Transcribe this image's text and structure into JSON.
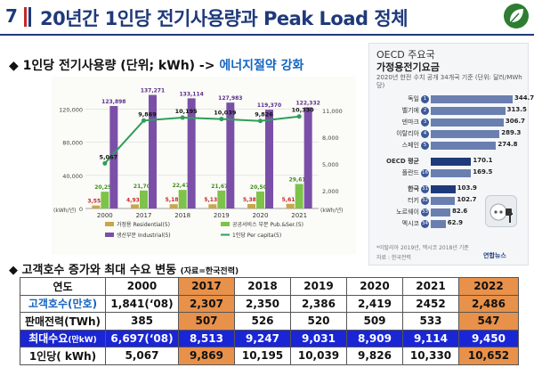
{
  "header": {
    "slide_number": "7",
    "title": "20년간 1인당 전기사용량과 Peak Load 정체",
    "colors": {
      "navy": "#1f3a7a",
      "red": "#c62828",
      "leaf": "#2e7d32"
    }
  },
  "section1": {
    "bullet": "◆",
    "label": "1인당 전기사용량 (단위; kWh) ->",
    "accent": "에너지절약 강화"
  },
  "chart_data": {
    "type": "bar",
    "categories": [
      "2000",
      "2017",
      "2018",
      "2019",
      "2020",
      "2021"
    ],
    "left_axis_ticks": [
      "120,000",
      "80,000",
      "40,000",
      "0"
    ],
    "left_axis_unit": "(kWh/년)",
    "right_axis_ticks": [
      "11,000",
      "8,000",
      "5,000",
      "2,000"
    ],
    "right_axis_unit": "(kWh/년)",
    "ylim_left": [
      0,
      140000
    ],
    "ylim_right": [
      0,
      13000
    ],
    "series": [
      {
        "name": "가정용 Residential(5)",
        "color": "#c9a64b",
        "values": [
          3552,
          4935,
          5189,
          5135,
          5382,
          5616
        ]
      },
      {
        "name": "공공서비스 부문 Pub.&Ser.(5)",
        "color": "#7dc34a",
        "values": [
          20259,
          21704,
          22471,
          21672,
          20500,
          29616
        ]
      },
      {
        "name": "생산부문 Industrial(5)",
        "color": "#7b4fa8",
        "values": [
          123898,
          137271,
          133114,
          127983,
          119370,
          122332
        ]
      },
      {
        "name": "1인당 Per capita(5)",
        "color": "#2e9e5b",
        "type": "line",
        "values": [
          5067,
          9869,
          10195,
          10039,
          9826,
          10330
        ]
      }
    ],
    "data_labels": {
      "residential": [
        "3,552",
        "4,935",
        "5,189",
        "5,135",
        "5,382",
        "5,616"
      ],
      "public": [
        "20,259",
        "21,704",
        "22,471",
        "21,672",
        "20,500",
        "29,616"
      ],
      "industrial": [
        "123,898",
        "137,271",
        "133,114",
        "127,983",
        "119,370",
        "122,332"
      ],
      "per_capita": [
        "5,067",
        "9,869",
        "10,195",
        "10,039",
        "9,826",
        "10,330"
      ]
    },
    "legend_labels": [
      "가정용 Residential(5)",
      "공공서비스 부문 Pub.&Ser.(5)",
      "생산부문 Industrial(5)",
      "1인당 Per capita(5)"
    ]
  },
  "oecd": {
    "title1": "OECD 주요국",
    "title2": "가정용전기요금",
    "subtitle": "2020년 한전 수치 공개 34개국 기준 (단위: 달러/MWh당)",
    "max_value": 344.7,
    "rows": [
      {
        "country": "독일",
        "rank": "1",
        "value": 344.7,
        "label": "344.7"
      },
      {
        "country": "벨기에",
        "rank": "2",
        "value": 313.5,
        "label": "313.5"
      },
      {
        "country": "덴마크",
        "rank": "3",
        "value": 306.7,
        "label": "306.7"
      },
      {
        "country": "이탈리아",
        "rank": "4",
        "value": 289.3,
        "label": "289.3"
      },
      {
        "country": "스페인",
        "rank": "5",
        "value": 274.8,
        "label": "274.8"
      },
      {
        "country": "OECD 평균",
        "rank": "",
        "value": 170.1,
        "label": "170.1",
        "bold": true,
        "gap": true
      },
      {
        "country": "폴란드",
        "rank": "16",
        "value": 169.5,
        "label": "169.5"
      },
      {
        "country": "한국",
        "rank": "31",
        "value": 103.9,
        "label": "103.9",
        "bold": true,
        "gap": true
      },
      {
        "country": "터키",
        "rank": "32",
        "value": 102.7,
        "label": "102.7"
      },
      {
        "country": "노르웨이",
        "rank": "33",
        "value": 82.6,
        "label": "82.6"
      },
      {
        "country": "멕시코",
        "rank": "34",
        "value": 62.9,
        "label": "62.9"
      }
    ],
    "note": "*이탈리아 2019년, 멕시코 2018년 기준",
    "note2": "자료 : 한국전력",
    "source": "연합뉴스"
  },
  "section2": {
    "bullet": "◆",
    "label": "고객호수 증가와 최대 수요 변동",
    "source": "(자료=한국전력)"
  },
  "table": {
    "headers": [
      "연도",
      "2000",
      "2017",
      "2018",
      "2019",
      "2020",
      "2021",
      "2022"
    ],
    "rows": [
      {
        "label": "고객호수(만호)",
        "cells": [
          "1,841(‘08)",
          "2,307",
          "2,350",
          "2,386",
          "2,419",
          "2452",
          "2,486"
        ]
      },
      {
        "label": "판매전력(TWh)",
        "cells": [
          "385",
          "507",
          "526",
          "520",
          "509",
          "533",
          "547"
        ]
      },
      {
        "label": "최대수요",
        "unit": "(만kW)",
        "cells": [
          "6,697(‘08)",
          "8,513",
          "9,247",
          "9,031",
          "8,909",
          "9,114",
          "9,450"
        ]
      },
      {
        "label": "1인당( kWh)",
        "cells": [
          "5,067",
          "9,869",
          "10,195",
          "10,039",
          "9,826",
          "10,330",
          "10,652"
        ]
      }
    ],
    "colors": {
      "highlight": "#e8914a",
      "peak_row": "#1a26d6"
    }
  }
}
